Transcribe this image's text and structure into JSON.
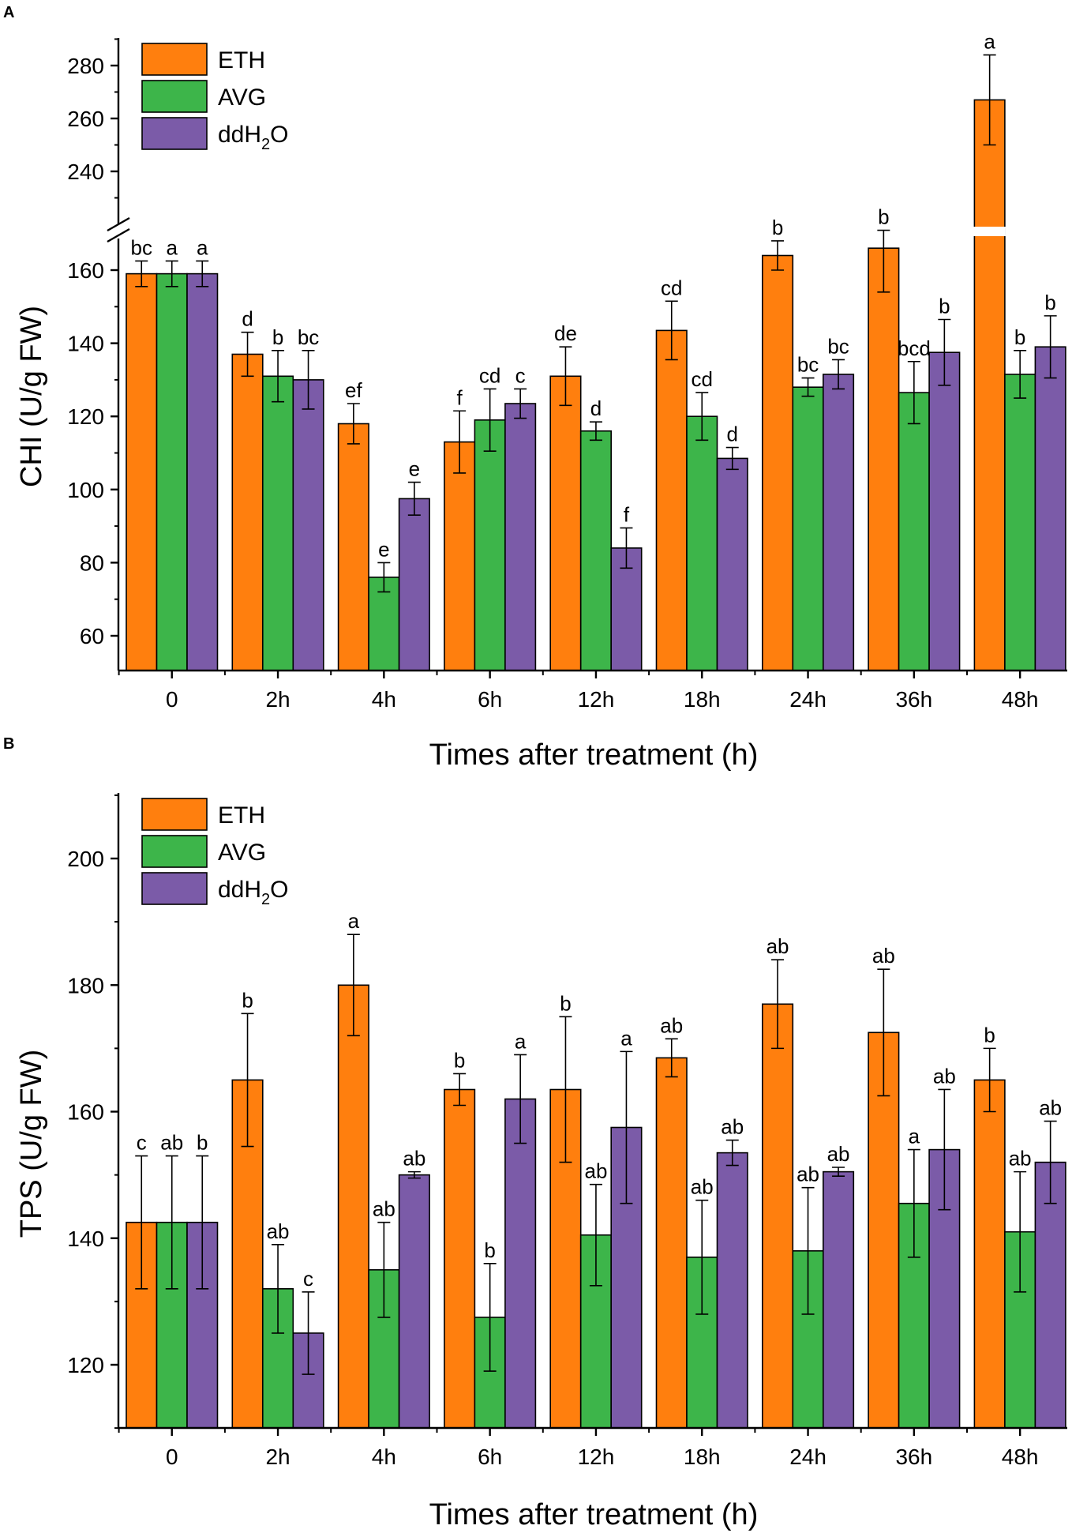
{
  "figure": {
    "panels": [
      "A",
      "B"
    ]
  },
  "colors": {
    "ETH": "#FF7F0E",
    "AVG": "#3DB54A",
    "ddH2O": "#7B5BA8"
  },
  "chart_data": [
    {
      "panel": "A",
      "type": "bar",
      "categories": [
        "0",
        "2h",
        "4h",
        "6h",
        "12h",
        "18h",
        "24h",
        "36h",
        "48h"
      ],
      "series": [
        {
          "name": "ETH",
          "legend": "ETH",
          "values": [
            159,
            137,
            118,
            113,
            131,
            143.5,
            164,
            166,
            267
          ],
          "errors": [
            3.5,
            6,
            5.5,
            8.5,
            8,
            8,
            4,
            12,
            17
          ],
          "labels": [
            "bc",
            "d",
            "ef",
            "f",
            "de",
            "cd",
            "b",
            "b",
            "a"
          ]
        },
        {
          "name": "AVG",
          "legend": "AVG",
          "values": [
            159,
            131,
            76,
            119,
            116,
            120,
            128,
            126.5,
            131.5
          ],
          "errors": [
            3.5,
            7,
            4,
            8.5,
            2.5,
            6.5,
            2.5,
            8.5,
            6.5
          ],
          "labels": [
            "a",
            "b",
            "e",
            "cd",
            "d",
            "cd",
            "bc",
            "bcd",
            "b"
          ]
        },
        {
          "name": "ddH2O",
          "legend": "ddH₂O",
          "values": [
            159,
            130,
            97.5,
            123.5,
            84,
            108.5,
            131.5,
            137.5,
            139
          ],
          "errors": [
            3.5,
            8,
            4.5,
            4,
            5.5,
            3,
            4,
            9,
            8.5
          ],
          "labels": [
            "a",
            "bc",
            "e",
            "c",
            "f",
            "d",
            "bc",
            "b",
            "b"
          ]
        }
      ],
      "ylabel": "CHI (U/g FW)",
      "xlabel": "Times after treatment (h)",
      "ylim": [
        50,
        290
      ],
      "axis_break": [
        170,
        225
      ],
      "yticks_lower": [
        60,
        80,
        100,
        120,
        140,
        160
      ],
      "yticks_upper": [
        240,
        260,
        280
      ],
      "legend_position": "top-left"
    },
    {
      "panel": "B",
      "type": "bar",
      "categories": [
        "0",
        "2h",
        "4h",
        "6h",
        "12h",
        "18h",
        "24h",
        "36h",
        "48h"
      ],
      "series": [
        {
          "name": "ETH",
          "legend": "ETH",
          "values": [
            142.5,
            165,
            180,
            163.5,
            163.5,
            168.5,
            177,
            172.5,
            165
          ],
          "errors": [
            10.5,
            10.5,
            8,
            2.5,
            11.5,
            3,
            7,
            10,
            5
          ],
          "labels": [
            "c",
            "b",
            "a",
            "b",
            "b",
            "ab",
            "ab",
            "ab",
            "b"
          ]
        },
        {
          "name": "AVG",
          "legend": "AVG",
          "values": [
            142.5,
            132,
            135,
            127.5,
            140.5,
            137,
            138,
            145.5,
            141
          ],
          "errors": [
            10.5,
            7,
            7.5,
            8.5,
            8,
            9,
            10,
            8.5,
            9.5
          ],
          "labels": [
            "ab",
            "ab",
            "ab",
            "b",
            "ab",
            "ab",
            "ab",
            "a",
            "ab"
          ]
        },
        {
          "name": "ddH2O",
          "legend": "ddH₂O",
          "values": [
            142.5,
            125,
            150,
            162,
            157.5,
            153.5,
            150.5,
            154,
            152
          ],
          "errors": [
            10.5,
            6.5,
            0.5,
            7,
            12,
            2,
            0.7,
            9.5,
            6.5
          ],
          "labels": [
            "b",
            "c",
            "ab",
            "a",
            "a",
            "ab",
            "ab",
            "ab",
            "ab"
          ]
        }
      ],
      "ylabel": "TPS (U/g FW)",
      "xlabel": "Times after treatment (h)",
      "ylim": [
        110,
        210
      ],
      "yticks": [
        120,
        140,
        160,
        180,
        200
      ],
      "legend_position": "top-left"
    }
  ]
}
